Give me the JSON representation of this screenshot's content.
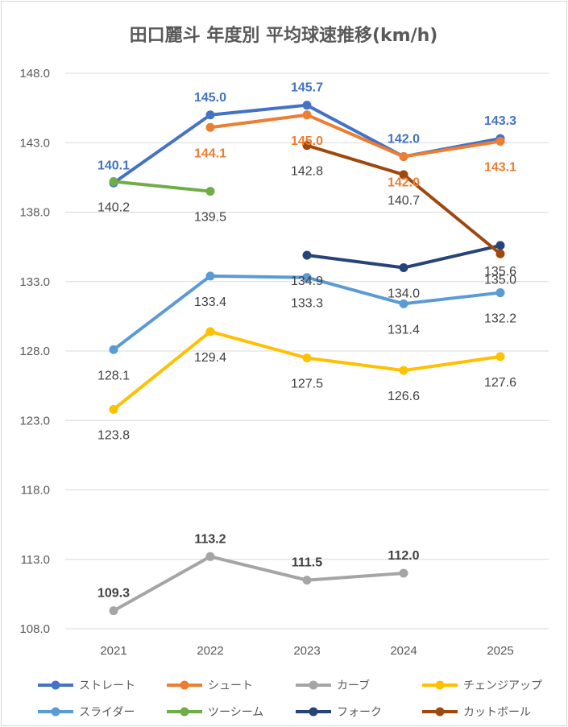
{
  "chart_data": {
    "type": "line",
    "title": "田口麗斗 年度別 平均球速推移(km/h)",
    "xlabel": "",
    "ylabel": "",
    "categories": [
      "2021",
      "2022",
      "2023",
      "2024",
      "2025"
    ],
    "ylim": [
      108.0,
      148.0
    ],
    "yticks": [
      "108.0",
      "113.0",
      "118.0",
      "123.0",
      "128.0",
      "133.0",
      "138.0",
      "143.0",
      "148.0"
    ],
    "grid": true,
    "legend_position": "bottom",
    "series": [
      {
        "name": "ストレート",
        "color": "#4472C4",
        "values": [
          140.1,
          145.0,
          145.7,
          142.0,
          143.3
        ],
        "label_side": "above",
        "label_color": "#4472C4",
        "label_bold": true
      },
      {
        "name": "シュート",
        "color": "#ED7D31",
        "values": [
          null,
          144.1,
          145.0,
          142.0,
          143.1
        ],
        "label_side": "below",
        "label_color": "#ED7D31",
        "label_bold": true
      },
      {
        "name": "カーブ",
        "color": "#A5A5A5",
        "values": [
          109.3,
          113.2,
          111.5,
          112.0,
          null
        ],
        "label_side": "above",
        "label_color": "#404040",
        "label_bold": true
      },
      {
        "name": "チェンジアップ",
        "color": "#FFC000",
        "values": [
          123.8,
          129.4,
          127.5,
          126.6,
          127.6
        ],
        "label_side": "below",
        "label_color": "#404040",
        "label_bold": false
      },
      {
        "name": "スライダー",
        "color": "#5B9BD5",
        "values": [
          128.1,
          133.4,
          133.3,
          131.4,
          132.2
        ],
        "label_side": "below",
        "label_color": "#404040",
        "label_bold": false
      },
      {
        "name": "ツーシーム",
        "color": "#70AD47",
        "values": [
          140.2,
          139.5,
          null,
          null,
          null
        ],
        "label_side": "below",
        "label_color": "#404040",
        "label_bold": false
      },
      {
        "name": "フォーク",
        "color": "#264478",
        "values": [
          null,
          null,
          134.9,
          134.0,
          135.6
        ],
        "label_side": "below",
        "label_color": "#404040",
        "label_bold": false
      },
      {
        "name": "カットボール",
        "color": "#9E480E",
        "values": [
          null,
          null,
          142.8,
          140.7,
          135.0
        ],
        "label_side": "below",
        "label_color": "#404040",
        "label_bold": false
      }
    ]
  }
}
